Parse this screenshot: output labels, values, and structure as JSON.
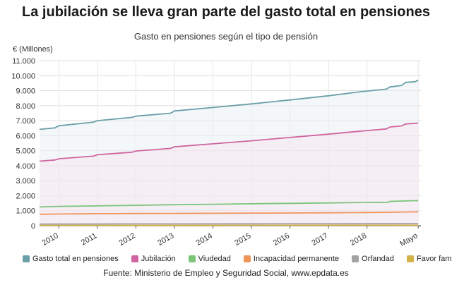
{
  "header": {
    "title": "La jubilación se lleva gran parte del gasto total en pensiones",
    "subtitle": "Gasto en pensiones según el tipo de pensión",
    "unit": "€ (Millones)"
  },
  "source": "Fuente: Ministerio de Empleo y Seguridad Social, www.epdata.es",
  "chart_data": {
    "type": "line",
    "ylim": [
      0,
      11000
    ],
    "yticks": [
      "0",
      "1.000",
      "2.000",
      "3.000",
      "4.000",
      "5.000",
      "6.000",
      "7.000",
      "8.000",
      "9.000",
      "10.000",
      "11.000"
    ],
    "xlim": [
      2009.5,
      2019.4
    ],
    "xtick_labels": [
      "2010",
      "2011",
      "2012",
      "2013",
      "2014",
      "2015",
      "2016",
      "2017",
      "2018",
      "Mayo"
    ],
    "xtick_positions": [
      2010,
      2011,
      2012,
      2013,
      2014,
      2015,
      2016,
      2017,
      2018,
      2019.33
    ],
    "grid": true,
    "legend_position": "bottom",
    "series": [
      {
        "name": "Gasto total en pensiones",
        "color": "#6a9fa8",
        "points": [
          [
            2009.5,
            6420
          ],
          [
            2009.9,
            6520
          ],
          [
            2010.0,
            6660
          ],
          [
            2010.9,
            6900
          ],
          [
            2011.0,
            7000
          ],
          [
            2011.9,
            7220
          ],
          [
            2012.0,
            7300
          ],
          [
            2012.9,
            7500
          ],
          [
            2013.0,
            7650
          ],
          [
            2014.0,
            7880
          ],
          [
            2015.0,
            8120
          ],
          [
            2016.0,
            8380
          ],
          [
            2017.0,
            8660
          ],
          [
            2017.9,
            8950
          ],
          [
            2018.5,
            9100
          ],
          [
            2018.6,
            9250
          ],
          [
            2018.9,
            9350
          ],
          [
            2019.0,
            9550
          ],
          [
            2019.25,
            9600
          ],
          [
            2019.33,
            9700
          ]
        ]
      },
      {
        "name": "Jubilación",
        "color": "#d064a0",
        "points": [
          [
            2009.5,
            4300
          ],
          [
            2009.9,
            4380
          ],
          [
            2010.0,
            4460
          ],
          [
            2010.9,
            4640
          ],
          [
            2011.0,
            4730
          ],
          [
            2011.9,
            4900
          ],
          [
            2012.0,
            4980
          ],
          [
            2012.9,
            5150
          ],
          [
            2013.0,
            5260
          ],
          [
            2014.0,
            5460
          ],
          [
            2015.0,
            5660
          ],
          [
            2016.0,
            5880
          ],
          [
            2017.0,
            6100
          ],
          [
            2017.9,
            6320
          ],
          [
            2018.5,
            6450
          ],
          [
            2018.6,
            6580
          ],
          [
            2018.9,
            6650
          ],
          [
            2019.0,
            6780
          ],
          [
            2019.33,
            6840
          ]
        ]
      },
      {
        "name": "Viudedad",
        "color": "#7cc47a",
        "points": [
          [
            2009.5,
            1250
          ],
          [
            2010.0,
            1290
          ],
          [
            2011.0,
            1320
          ],
          [
            2012.0,
            1360
          ],
          [
            2013.0,
            1400
          ],
          [
            2014.0,
            1430
          ],
          [
            2015.0,
            1460
          ],
          [
            2016.0,
            1490
          ],
          [
            2017.0,
            1520
          ],
          [
            2018.0,
            1550
          ],
          [
            2018.55,
            1560
          ],
          [
            2018.6,
            1620
          ],
          [
            2019.0,
            1650
          ],
          [
            2019.33,
            1680
          ]
        ]
      },
      {
        "name": "Incapacidad permanente",
        "color": "#f0955a",
        "points": [
          [
            2009.5,
            760
          ],
          [
            2010.0,
            780
          ],
          [
            2011.0,
            800
          ],
          [
            2012.0,
            815
          ],
          [
            2013.0,
            820
          ],
          [
            2014.0,
            825
          ],
          [
            2015.0,
            835
          ],
          [
            2016.0,
            845
          ],
          [
            2017.0,
            860
          ],
          [
            2018.0,
            880
          ],
          [
            2019.0,
            910
          ],
          [
            2019.33,
            925
          ]
        ]
      },
      {
        "name": "Orfandad",
        "color": "#a3a3a3",
        "points": [
          [
            2009.5,
            110
          ],
          [
            2012.0,
            120
          ],
          [
            2015.0,
            125
          ],
          [
            2018.0,
            130
          ],
          [
            2019.33,
            140
          ]
        ]
      },
      {
        "name": "Favor familiar",
        "color": "#d4b24a",
        "points": [
          [
            2009.5,
            25
          ],
          [
            2015.0,
            30
          ],
          [
            2019.33,
            32
          ]
        ]
      }
    ]
  }
}
